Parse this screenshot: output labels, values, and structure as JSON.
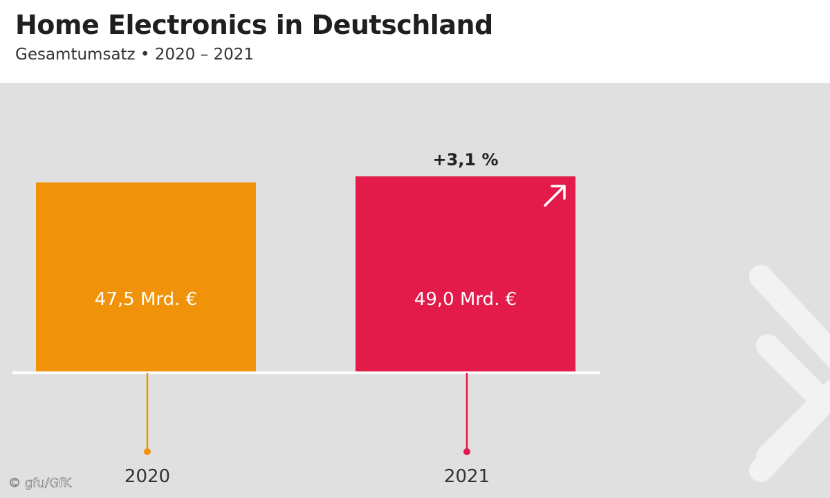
{
  "header": {
    "title": "Home Electronics in Deutschland",
    "subtitle": "Gesamtumsatz • 2020 – 2021"
  },
  "chart_data": {
    "type": "bar",
    "title": "Home Electronics in Deutschland",
    "subtitle": "Gesamtumsatz • 2020 – 2021",
    "categories": [
      "2020",
      "2021"
    ],
    "values": [
      47.5,
      49.0
    ],
    "value_labels": [
      "47,5 Mrd. €",
      "49,0 Mrd. €"
    ],
    "unit": "Mrd. €",
    "colors": [
      "#f0930a",
      "#e31b4b"
    ],
    "change_label": "+3,1 %",
    "change_icon": "arrow-up-right-icon",
    "ylim": [
      0,
      49.0
    ],
    "grid": false,
    "xlabel": "",
    "ylabel": ""
  },
  "footer": {
    "credit": "© gfu/GfK"
  },
  "colors": {
    "background": "#e0e0e0",
    "baseline": "#ffffff",
    "title": "#1f1f1f"
  }
}
